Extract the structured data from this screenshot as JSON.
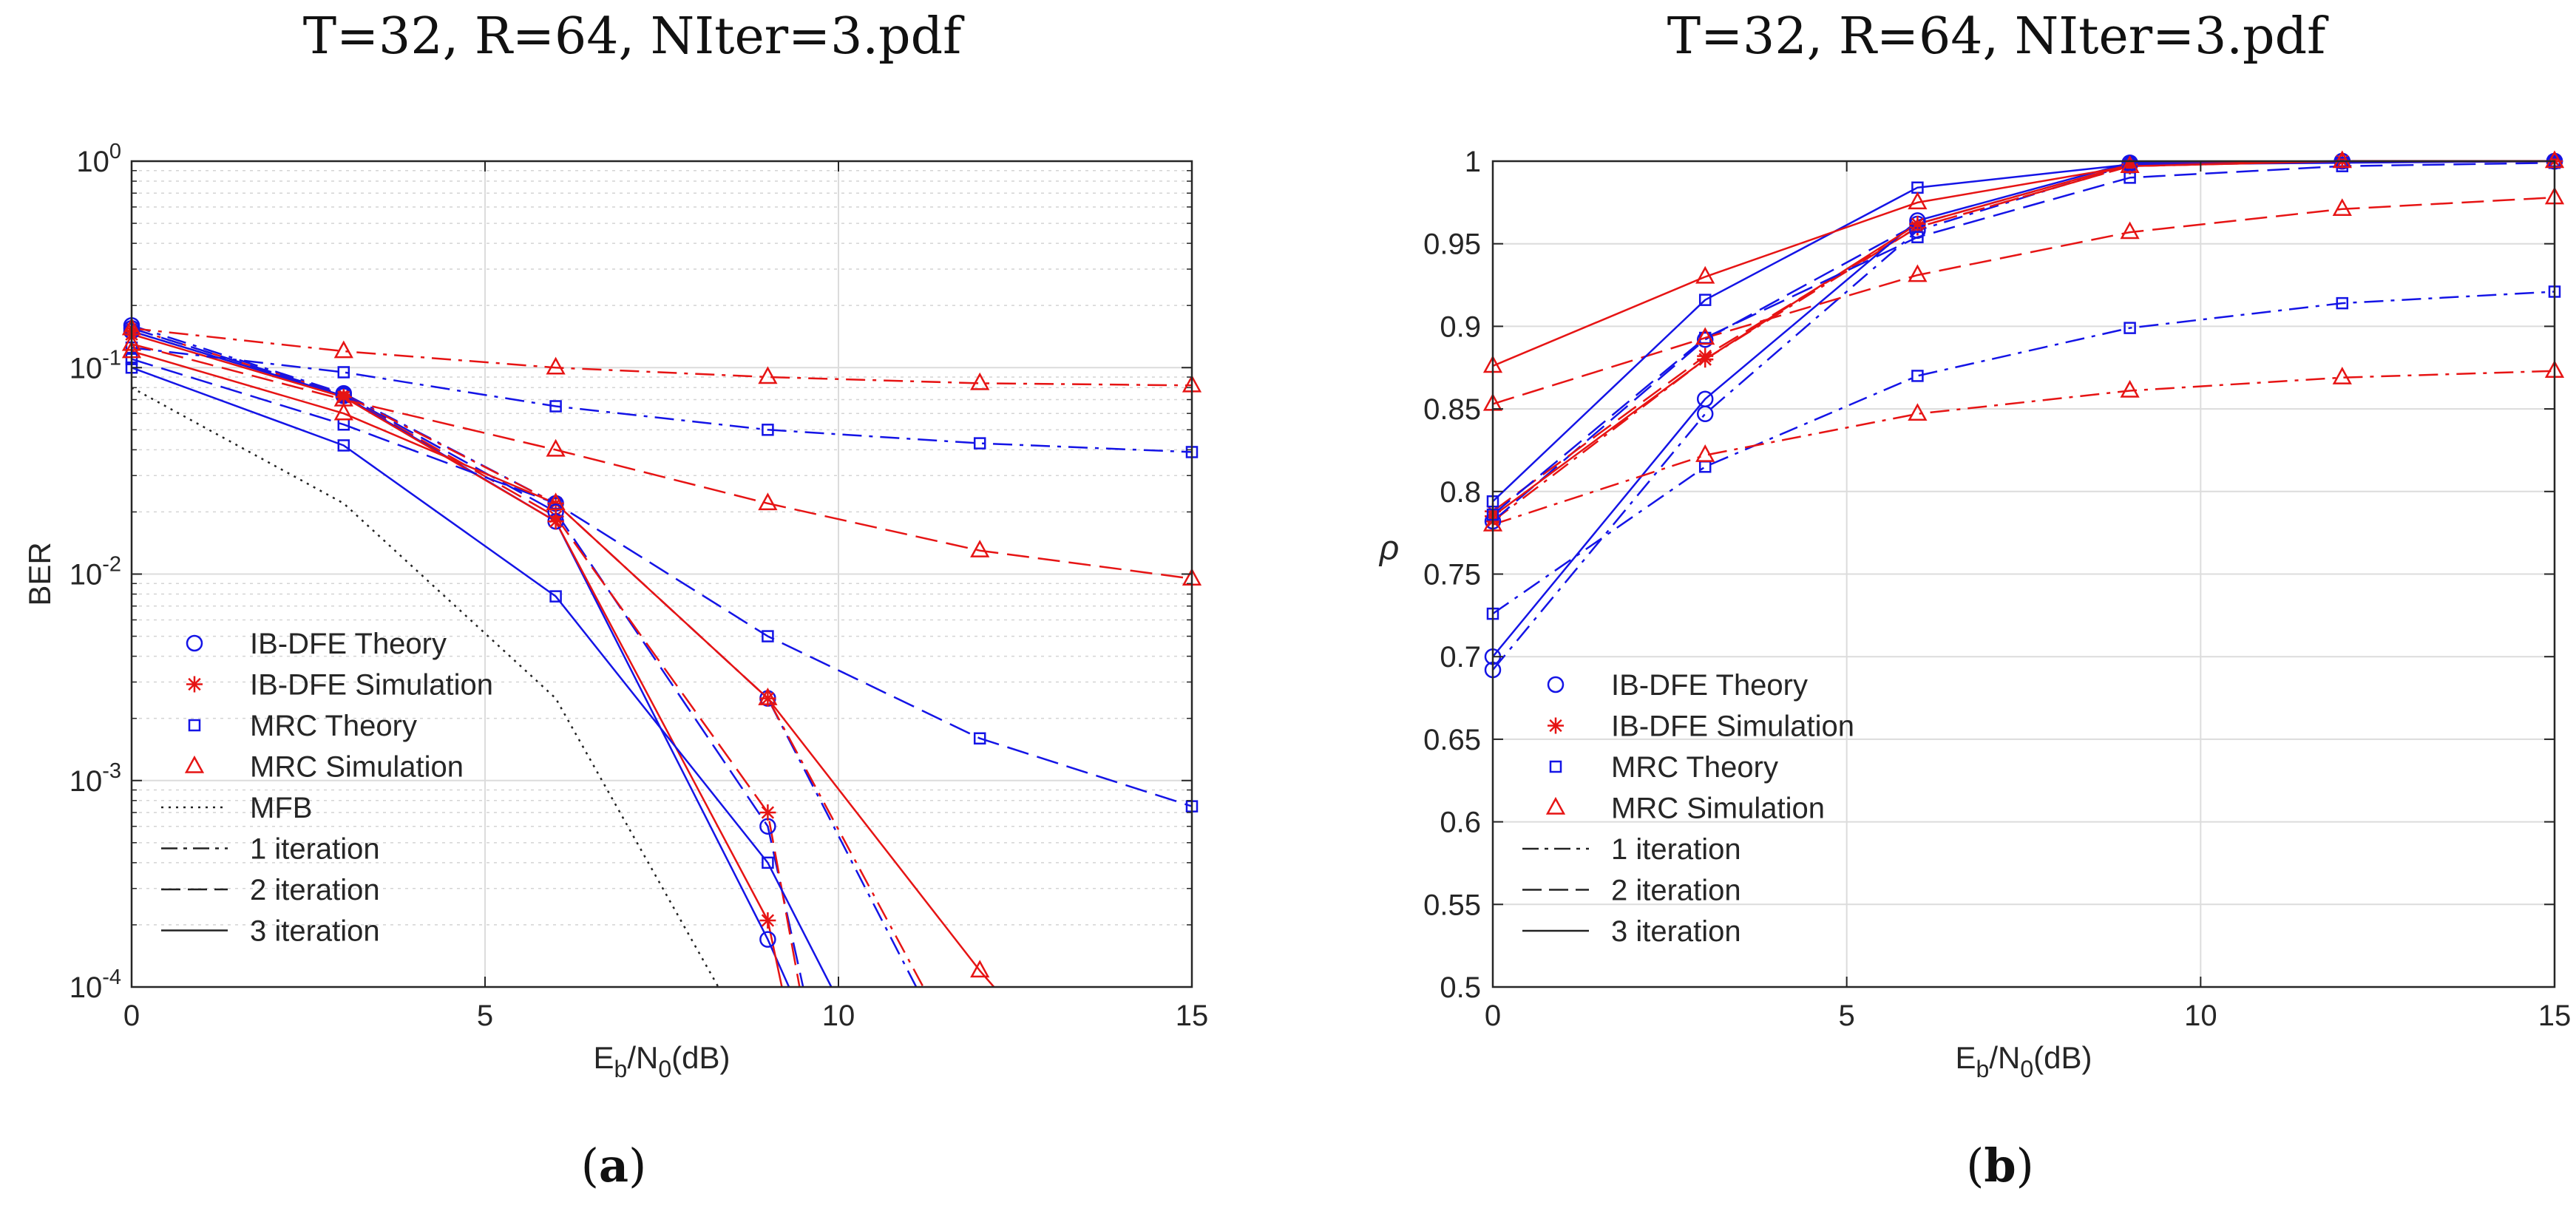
{
  "panel_a": {
    "title": "T=32, R=64, NIter=3.pdf",
    "caption_letter": "a",
    "chart_data": {
      "type": "line",
      "yscale": "log",
      "xlabel": "Eb/N0(dB)",
      "ylabel": "BER",
      "xlim": [
        0,
        15
      ],
      "ylim": [
        0.0001,
        1
      ],
      "xticks": [
        0,
        5,
        10,
        15
      ],
      "x_tick_labels": [
        "0",
        "5",
        "10",
        "15"
      ],
      "y_tick_labels": [
        {
          "value": 0.0001,
          "base": "10",
          "exp": "-4"
        },
        {
          "value": 0.001,
          "base": "10",
          "exp": "-3"
        },
        {
          "value": 0.01,
          "base": "10",
          "exp": "-2"
        },
        {
          "value": 0.1,
          "base": "10",
          "exp": "-1"
        },
        {
          "value": 1,
          "base": "10",
          "exp": "0"
        }
      ],
      "grid": true,
      "legend": {
        "position": "bottom-left",
        "entries": [
          {
            "label": "IB-DFE Theory",
            "color": "#1414e6",
            "marker": "circle",
            "dash": "solid",
            "line": false
          },
          {
            "label": "IB-DFE Simulation",
            "color": "#e61414",
            "marker": "star",
            "dash": "solid",
            "line": false
          },
          {
            "label": "MRC Theory",
            "color": "#1414e6",
            "marker": "square",
            "dash": "solid",
            "line": false
          },
          {
            "label": "MRC Simulation",
            "color": "#e61414",
            "marker": "triangle",
            "dash": "solid",
            "line": false
          },
          {
            "label": "MFB",
            "color": "#222222",
            "marker": "none",
            "dash": "dotted",
            "line": true
          },
          {
            "label": "1 iteration",
            "color": "#222222",
            "marker": "none",
            "dash": "dashdot",
            "line": true
          },
          {
            "label": "2 iteration",
            "color": "#222222",
            "marker": "none",
            "dash": "dashed",
            "line": true
          },
          {
            "label": "3 iteration",
            "color": "#222222",
            "marker": "none",
            "dash": "solid",
            "line": true
          }
        ]
      },
      "series": [
        {
          "name": "MFB",
          "color": "#222222",
          "dash": "dotted",
          "marker": "none",
          "x": [
            0,
            3,
            6,
            8.3
          ],
          "y": [
            0.08,
            0.022,
            0.0025,
            0.0001
          ]
        },
        {
          "name": "IB-DFE Theory, 1 iteration",
          "color": "#1414e6",
          "dash": "dashdot",
          "marker": "circle",
          "x": [
            0,
            3,
            6,
            9,
            11.1
          ],
          "y": [
            0.16,
            0.075,
            0.022,
            0.0025,
            0.0001
          ]
        },
        {
          "name": "IB-DFE Simulation, 1 iteration",
          "color": "#e61414",
          "dash": "dashdot",
          "marker": "star",
          "x": [
            0,
            3,
            6,
            9,
            11.2
          ],
          "y": [
            0.155,
            0.074,
            0.022,
            0.0025,
            0.0001
          ]
        },
        {
          "name": "IB-DFE Theory, 2 iteration",
          "color": "#1414e6",
          "dash": "dashed",
          "marker": "circle",
          "x": [
            0,
            3,
            6,
            9,
            9.5
          ],
          "y": [
            0.155,
            0.074,
            0.02,
            0.0006,
            0.0001
          ]
        },
        {
          "name": "IB-DFE Simulation, 2 iteration",
          "color": "#e61414",
          "dash": "dashed",
          "marker": "star",
          "x": [
            0,
            3,
            6,
            9,
            9.45
          ],
          "y": [
            0.15,
            0.073,
            0.019,
            0.0007,
            0.0001
          ]
        },
        {
          "name": "IB-DFE Theory, 3 iteration",
          "color": "#1414e6",
          "dash": "solid",
          "marker": "circle",
          "x": [
            0,
            3,
            6,
            9,
            9.3
          ],
          "y": [
            0.15,
            0.073,
            0.018,
            0.00017,
            0.0001
          ]
        },
        {
          "name": "IB-DFE Simulation, 3 iteration",
          "color": "#e61414",
          "dash": "solid",
          "marker": "star",
          "x": [
            0,
            3,
            6,
            9,
            9.2
          ],
          "y": [
            0.145,
            0.072,
            0.018,
            0.00021,
            0.0001
          ]
        },
        {
          "name": "MRC Theory, 1 iteration",
          "color": "#1414e6",
          "dash": "dashdot",
          "marker": "square",
          "x": [
            0,
            3,
            6,
            9,
            12,
            15
          ],
          "y": [
            0.125,
            0.095,
            0.065,
            0.05,
            0.043,
            0.039
          ]
        },
        {
          "name": "MRC Simulation, 1 iteration",
          "color": "#e61414",
          "dash": "dashdot",
          "marker": "triangle",
          "x": [
            0,
            3,
            6,
            9,
            12,
            15
          ],
          "y": [
            0.155,
            0.12,
            0.1,
            0.09,
            0.084,
            0.082
          ]
        },
        {
          "name": "MRC Theory, 2 iteration",
          "color": "#1414e6",
          "dash": "dashed",
          "marker": "square",
          "x": [
            0,
            3,
            6,
            9,
            12,
            15
          ],
          "y": [
            0.11,
            0.053,
            0.022,
            0.005,
            0.0016,
            0.00075
          ]
        },
        {
          "name": "MRC Simulation, 2 iteration",
          "color": "#e61414",
          "dash": "dashed",
          "marker": "triangle",
          "x": [
            0,
            3,
            6,
            9,
            12,
            15
          ],
          "y": [
            0.13,
            0.07,
            0.04,
            0.022,
            0.013,
            0.0095
          ]
        },
        {
          "name": "MRC Theory, 3 iteration",
          "color": "#1414e6",
          "dash": "solid",
          "marker": "square",
          "x": [
            0,
            3,
            6,
            9,
            9.9
          ],
          "y": [
            0.1,
            0.042,
            0.0078,
            0.0004,
            0.0001
          ]
        },
        {
          "name": "MRC Simulation, 3 iteration",
          "color": "#e61414",
          "dash": "solid",
          "marker": "triangle",
          "x": [
            0,
            3,
            6,
            9,
            12,
            12.2
          ],
          "y": [
            0.12,
            0.06,
            0.022,
            0.0025,
            0.00012,
            0.0001
          ]
        }
      ]
    }
  },
  "panel_b": {
    "title": "T=32, R=64, NIter=3.pdf",
    "caption_letter": "b",
    "chart_data": {
      "type": "line",
      "yscale": "linear",
      "xlabel": "Eb/N0(dB)",
      "ylabel": "ρ",
      "xlim": [
        0,
        15
      ],
      "ylim": [
        0.5,
        1
      ],
      "xticks": [
        0,
        5,
        10,
        15
      ],
      "x_tick_labels": [
        "0",
        "5",
        "10",
        "15"
      ],
      "y_tick_labels": [
        "0.5",
        "0.55",
        "0.6",
        "0.65",
        "0.7",
        "0.75",
        "0.8",
        "0.85",
        "0.9",
        "0.95",
        "1"
      ],
      "grid": true,
      "legend": {
        "position": "bottom-left",
        "entries": [
          {
            "label": "IB-DFE Theory",
            "color": "#1414e6",
            "marker": "circle",
            "dash": "solid",
            "line": false
          },
          {
            "label": "IB-DFE Simulation",
            "color": "#e61414",
            "marker": "star",
            "dash": "solid",
            "line": false
          },
          {
            "label": "MRC Theory",
            "color": "#1414e6",
            "marker": "square",
            "dash": "solid",
            "line": false
          },
          {
            "label": "MRC Simulation",
            "color": "#e61414",
            "marker": "triangle",
            "dash": "solid",
            "line": false
          },
          {
            "label": "1 iteration",
            "color": "#222222",
            "marker": "none",
            "dash": "dashdot",
            "line": true
          },
          {
            "label": "2 iteration",
            "color": "#222222",
            "marker": "none",
            "dash": "dashed",
            "line": true
          },
          {
            "label": "3 iteration",
            "color": "#222222",
            "marker": "none",
            "dash": "solid",
            "line": true
          }
        ]
      },
      "series": [
        {
          "name": "IB-DFE Theory, 1 iteration",
          "color": "#1414e6",
          "dash": "dashdot",
          "marker": "circle",
          "x": [
            0,
            3,
            6,
            9,
            12,
            15
          ],
          "y": [
            0.692,
            0.847,
            0.958,
            0.998,
            1.0,
            1.0
          ]
        },
        {
          "name": "IB-DFE Simulation, 1 iteration",
          "color": "#e61414",
          "dash": "dashdot",
          "marker": "star",
          "x": [
            0,
            3,
            6,
            9,
            12,
            15
          ],
          "y": [
            0.782,
            0.88,
            0.96,
            0.997,
            1.0,
            1.0
          ]
        },
        {
          "name": "IB-DFE Theory, 2 iteration",
          "color": "#1414e6",
          "dash": "dashed",
          "marker": "circle",
          "x": [
            0,
            3,
            6,
            9,
            12,
            15
          ],
          "y": [
            0.782,
            0.892,
            0.962,
            0.998,
            1.0,
            1.0
          ]
        },
        {
          "name": "IB-DFE Simulation, 2 iteration",
          "color": "#e61414",
          "dash": "dashed",
          "marker": "star",
          "x": [
            0,
            3,
            6,
            9,
            12,
            15
          ],
          "y": [
            0.788,
            0.882,
            0.96,
            0.997,
            1.0,
            1.0
          ]
        },
        {
          "name": "IB-DFE Theory, 3 iteration",
          "color": "#1414e6",
          "dash": "solid",
          "marker": "circle",
          "x": [
            0,
            3,
            6,
            9,
            12,
            15
          ],
          "y": [
            0.7,
            0.856,
            0.964,
            0.999,
            1.0,
            1.0
          ]
        },
        {
          "name": "IB-DFE Simulation, 3 iteration",
          "color": "#e61414",
          "dash": "solid",
          "marker": "star",
          "x": [
            0,
            3,
            6,
            9,
            12,
            15
          ],
          "y": [
            0.785,
            0.88,
            0.962,
            0.998,
            1.0,
            1.0
          ]
        },
        {
          "name": "MRC Theory, 1 iteration",
          "color": "#1414e6",
          "dash": "dashdot",
          "marker": "square",
          "x": [
            0,
            3,
            6,
            9,
            12,
            15
          ],
          "y": [
            0.726,
            0.815,
            0.87,
            0.899,
            0.914,
            0.921
          ]
        },
        {
          "name": "MRC Simulation, 1 iteration",
          "color": "#e61414",
          "dash": "dashdot",
          "marker": "triangle",
          "x": [
            0,
            3,
            6,
            9,
            12,
            15
          ],
          "y": [
            0.78,
            0.822,
            0.847,
            0.861,
            0.869,
            0.873
          ]
        },
        {
          "name": "MRC Theory, 2 iteration",
          "color": "#1414e6",
          "dash": "dashed",
          "marker": "square",
          "x": [
            0,
            3,
            6,
            9,
            12,
            15
          ],
          "y": [
            0.786,
            0.893,
            0.954,
            0.99,
            0.997,
            0.999
          ]
        },
        {
          "name": "MRC Simulation, 2 iteration",
          "color": "#e61414",
          "dash": "dashed",
          "marker": "triangle",
          "x": [
            0,
            3,
            6,
            9,
            12,
            15
          ],
          "y": [
            0.853,
            0.893,
            0.931,
            0.957,
            0.971,
            0.978
          ]
        },
        {
          "name": "MRC Theory, 3 iteration",
          "color": "#1414e6",
          "dash": "solid",
          "marker": "square",
          "x": [
            0,
            3,
            6,
            9,
            12,
            15
          ],
          "y": [
            0.794,
            0.916,
            0.984,
            0.998,
            0.999,
            1.0
          ]
        },
        {
          "name": "MRC Simulation, 3 iteration",
          "color": "#e61414",
          "dash": "solid",
          "marker": "triangle",
          "x": [
            0,
            3,
            6,
            9,
            12,
            15
          ],
          "y": [
            0.876,
            0.93,
            0.975,
            0.997,
            1.0,
            1.0
          ]
        }
      ]
    }
  }
}
